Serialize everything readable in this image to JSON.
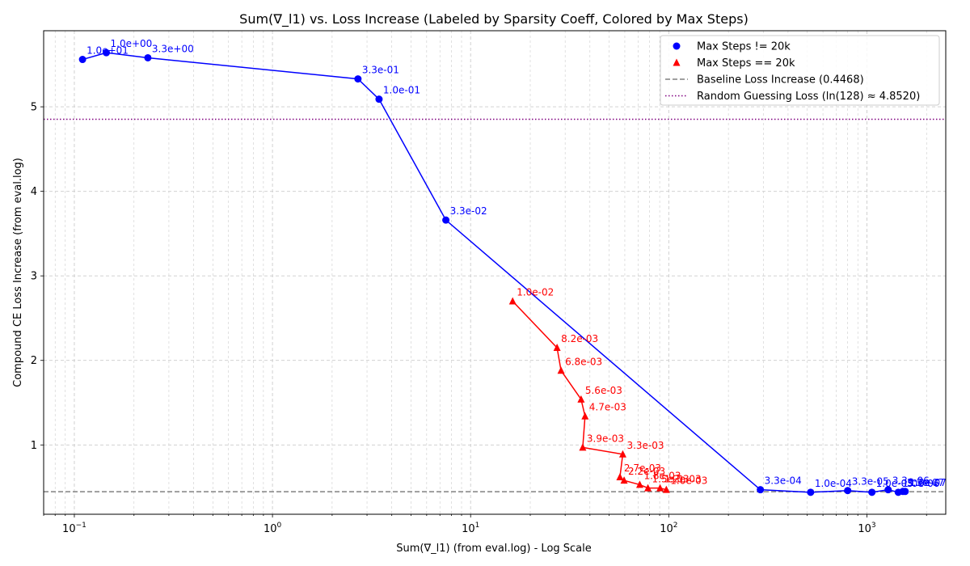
{
  "chart_data": {
    "type": "scatter",
    "title": "Sum(∇_l1) vs. Loss Increase (Labeled by Sparsity Coeff, Colored by Max Steps)",
    "xlabel": "Sum(∇_l1) (from eval.log) - Log Scale",
    "ylabel": "Compound CE Loss Increase (from eval.log)",
    "xscale": "log",
    "xlim": [
      0.07,
      2500
    ],
    "ylim": [
      0.18,
      5.9
    ],
    "xticks": [
      {
        "value": 0.1,
        "base": "10",
        "exp": "−1"
      },
      {
        "value": 1,
        "base": "10",
        "exp": "0"
      },
      {
        "value": 10,
        "base": "10",
        "exp": "1"
      },
      {
        "value": 100,
        "base": "10",
        "exp": "2"
      },
      {
        "value": 1000,
        "base": "10",
        "exp": "3"
      }
    ],
    "yticks": [
      1,
      2,
      3,
      4,
      5
    ],
    "grid": true,
    "legend_position": "top-right",
    "series": [
      {
        "name": "Max Steps != 20k",
        "color": "#0000ff",
        "marker": "circle",
        "points": [
          {
            "x": 0.11,
            "y": 5.56,
            "label": "1.0e+01"
          },
          {
            "x": 0.145,
            "y": 5.64,
            "label": "1.0e+00"
          },
          {
            "x": 0.235,
            "y": 5.58,
            "label": "3.3e+00"
          },
          {
            "x": 2.7,
            "y": 5.33,
            "label": "3.3e-01"
          },
          {
            "x": 3.45,
            "y": 5.09,
            "label": "1.0e-01"
          },
          {
            "x": 7.5,
            "y": 3.66,
            "label": "3.3e-02"
          },
          {
            "x": 290,
            "y": 0.47,
            "label": "3.3e-04"
          },
          {
            "x": 520,
            "y": 0.44,
            "label": "1.0e-04"
          },
          {
            "x": 800,
            "y": 0.46,
            "label": "3.3e-05"
          },
          {
            "x": 1060,
            "y": 0.44,
            "label": "1.0e-05"
          },
          {
            "x": 1280,
            "y": 0.47,
            "label": "3.3e-06"
          },
          {
            "x": 1440,
            "y": 0.44,
            "label": "1.0e-06"
          },
          {
            "x": 1520,
            "y": 0.45,
            "label": "3.3e-07"
          },
          {
            "x": 1560,
            "y": 0.45,
            "label": "1.0e-07"
          }
        ]
      },
      {
        "name": "Max Steps == 20k",
        "color": "#ff0000",
        "marker": "triangle",
        "points": [
          {
            "x": 16.3,
            "y": 2.7,
            "label": "1.0e-02"
          },
          {
            "x": 27.3,
            "y": 2.15,
            "label": "8.2e-03"
          },
          {
            "x": 28.6,
            "y": 1.88,
            "label": "6.8e-03"
          },
          {
            "x": 36.1,
            "y": 1.54,
            "label": "5.6e-03"
          },
          {
            "x": 37.8,
            "y": 1.34,
            "label": "4.7e-03"
          },
          {
            "x": 36.8,
            "y": 0.97,
            "label": "3.9e-03"
          },
          {
            "x": 58.6,
            "y": 0.89,
            "label": "3.3e-03"
          },
          {
            "x": 56.7,
            "y": 0.62,
            "label": "2.7e-03"
          },
          {
            "x": 59.5,
            "y": 0.58,
            "label": "2.2e-03"
          },
          {
            "x": 71.4,
            "y": 0.53,
            "label": "1.8e-03"
          },
          {
            "x": 78.5,
            "y": 0.49,
            "label": "1.5e-03"
          },
          {
            "x": 90.4,
            "y": 0.49,
            "label": "1.2e-03"
          },
          {
            "x": 97.2,
            "y": 0.47,
            "label": "1.0e-03"
          }
        ]
      }
    ],
    "reference_lines": [
      {
        "name": "Baseline Loss Increase (0.4468)",
        "y": 0.4468,
        "color": "#808080",
        "style": "dashed"
      },
      {
        "name": "Random Guessing Loss (ln(128) ≈ 4.8520)",
        "y": 4.852,
        "color": "#800080",
        "style": "dotted"
      }
    ],
    "legend": [
      {
        "label": "Max Steps != 20k",
        "kind": "circle",
        "color": "#0000ff"
      },
      {
        "label": "Max Steps == 20k",
        "kind": "triangle",
        "color": "#ff0000"
      },
      {
        "label": "Baseline Loss Increase (0.4468)",
        "kind": "dashed",
        "color": "#808080"
      },
      {
        "label": "Random Guessing Loss (ln(128) ≈ 4.8520)",
        "kind": "dotted",
        "color": "#800080"
      }
    ]
  }
}
